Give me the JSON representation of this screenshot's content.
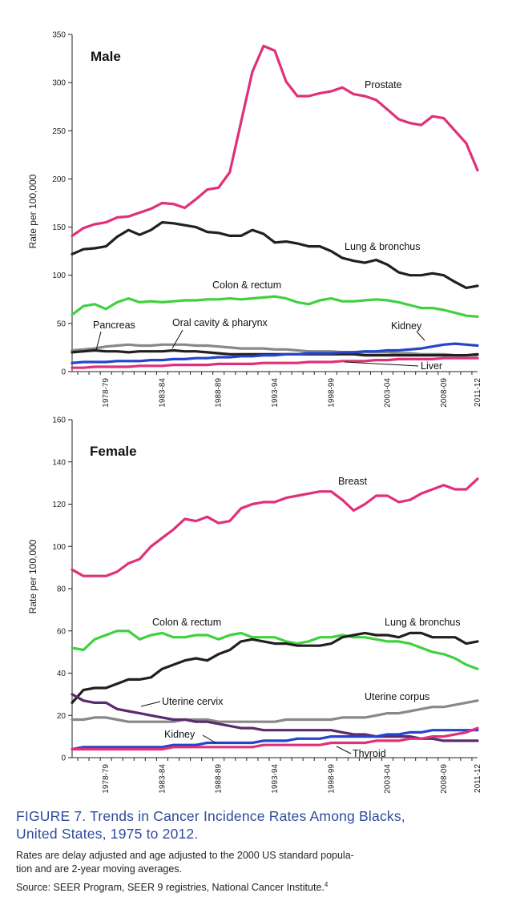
{
  "figure": {
    "title_line1": "FIGURE 7. Trends in Cancer Incidence Rates Among Blacks,",
    "title_line2": "United States, 1975 to 2012.",
    "note_line1": "Rates are delay adjusted and age adjusted to the 2000 US standard popula-",
    "note_line2": "tion and are 2-year moving averages.",
    "source": "Source: SEER Program, SEER 9 registries, National Cancer Institute.",
    "source_ref": "4"
  },
  "chart_data": [
    {
      "type": "line",
      "title": "Male",
      "ylabel": "Rate per 100,000",
      "ylim": [
        0,
        350
      ],
      "yticks": [
        0,
        50,
        100,
        150,
        200,
        250,
        300,
        350
      ],
      "xlim": [
        1975.5,
        2011.5
      ],
      "xtick_labels": [
        "1978-79",
        "1983-84",
        "1988-89",
        "1993-94",
        "1998-99",
        "2003-04",
        "2008-09",
        "2011-12"
      ],
      "x": [
        1975.5,
        1976.5,
        1977.5,
        1978.5,
        1979.5,
        1980.5,
        1981.5,
        1982.5,
        1983.5,
        1984.5,
        1985.5,
        1986.5,
        1987.5,
        1988.5,
        1989.5,
        1990.5,
        1991.5,
        1992.5,
        1993.5,
        1994.5,
        1995.5,
        1996.5,
        1997.5,
        1998.5,
        1999.5,
        2000.5,
        2001.5,
        2002.5,
        2003.5,
        2004.5,
        2005.5,
        2006.5,
        2007.5,
        2008.5,
        2009.5,
        2010.5,
        2011.5
      ],
      "series": [
        {
          "name": "Prostate",
          "color": "#e0307a",
          "values": [
            141,
            149,
            153,
            155,
            160,
            161,
            165,
            169,
            175,
            174,
            170,
            179,
            189,
            191,
            207,
            259,
            311,
            338,
            333,
            301,
            286,
            286,
            289,
            291,
            295,
            288,
            286,
            282,
            272,
            262,
            258,
            256,
            265,
            263,
            250,
            237,
            209
          ]
        },
        {
          "name": "Lung & bronchus",
          "color": "#231f20",
          "values": [
            122,
            127,
            128,
            130,
            140,
            147,
            142,
            147,
            155,
            154,
            152,
            150,
            145,
            144,
            141,
            141,
            147,
            143,
            134,
            135,
            133,
            130,
            130,
            125,
            118,
            115,
            113,
            116,
            111,
            103,
            100,
            100,
            102,
            100,
            93,
            87,
            89
          ]
        },
        {
          "name": "Colon & rectum",
          "color": "#3fd13f",
          "values": [
            59,
            68,
            70,
            65,
            72,
            76,
            72,
            73,
            72,
            73,
            74,
            74,
            75,
            75,
            76,
            75,
            76,
            77,
            78,
            76,
            72,
            70,
            74,
            76,
            73,
            73,
            74,
            75,
            74,
            72,
            69,
            66,
            66,
            64,
            61,
            58,
            57
          ]
        },
        {
          "name": "Pancreas",
          "color": "#888888",
          "values": [
            22,
            23,
            24,
            26,
            27,
            28,
            27,
            27,
            28,
            28,
            28,
            27,
            27,
            26,
            25,
            24,
            24,
            24,
            23,
            23,
            22,
            21,
            21,
            21,
            20,
            20,
            20,
            20,
            20,
            19,
            19,
            18,
            18,
            18,
            17,
            17,
            17
          ]
        },
        {
          "name": "Oral cavity & pharynx",
          "color": "#231f20",
          "values": [
            20,
            21,
            22,
            21,
            21,
            20,
            21,
            21,
            21,
            22,
            21,
            21,
            20,
            19,
            18,
            18,
            18,
            18,
            18,
            18,
            18,
            18,
            18,
            18,
            18,
            18,
            17,
            17,
            17,
            17,
            17,
            17,
            17,
            17,
            17,
            17,
            18
          ]
        },
        {
          "name": "Kidney",
          "color": "#2444cc",
          "values": [
            9,
            10,
            10,
            10,
            11,
            11,
            11,
            12,
            12,
            13,
            13,
            14,
            14,
            15,
            15,
            16,
            16,
            17,
            17,
            18,
            18,
            19,
            19,
            19,
            20,
            20,
            21,
            21,
            22,
            22,
            23,
            24,
            26,
            28,
            29,
            28,
            27
          ]
        },
        {
          "name": "Liver",
          "color": "#e0307a",
          "values": [
            4,
            4,
            5,
            5,
            5,
            5,
            6,
            6,
            6,
            7,
            7,
            7,
            7,
            8,
            8,
            8,
            8,
            9,
            9,
            9,
            9,
            10,
            10,
            10,
            11,
            11,
            11,
            12,
            12,
            13,
            13,
            13,
            13,
            14,
            14,
            14,
            14
          ]
        }
      ]
    },
    {
      "type": "line",
      "title": "Female",
      "ylabel": "Rate per 100,000",
      "ylim": [
        0,
        160
      ],
      "yticks": [
        0,
        20,
        40,
        60,
        80,
        100,
        120,
        140,
        160
      ],
      "xlim": [
        1975.5,
        2011.5
      ],
      "xtick_labels": [
        "1978-79",
        "1983-84",
        "1988-89",
        "1993-94",
        "1998-99",
        "2003-04",
        "2008-09",
        "2011-12"
      ],
      "x": [
        1975.5,
        1976.5,
        1977.5,
        1978.5,
        1979.5,
        1980.5,
        1981.5,
        1982.5,
        1983.5,
        1984.5,
        1985.5,
        1986.5,
        1987.5,
        1988.5,
        1989.5,
        1990.5,
        1991.5,
        1992.5,
        1993.5,
        1994.5,
        1995.5,
        1996.5,
        1997.5,
        1998.5,
        1999.5,
        2000.5,
        2001.5,
        2002.5,
        2003.5,
        2004.5,
        2005.5,
        2006.5,
        2007.5,
        2008.5,
        2009.5,
        2010.5,
        2011.5
      ],
      "series": [
        {
          "name": "Breast",
          "color": "#e0307a",
          "values": [
            89,
            86,
            86,
            86,
            88,
            92,
            94,
            100,
            104,
            108,
            113,
            112,
            114,
            111,
            112,
            118,
            120,
            121,
            121,
            123,
            124,
            125,
            126,
            126,
            122,
            117,
            120,
            124,
            124,
            121,
            122,
            125,
            127,
            129,
            127,
            127,
            132
          ]
        },
        {
          "name": "Colon & rectum",
          "color": "#3fd13f",
          "values": [
            52,
            51,
            56,
            58,
            60,
            60,
            56,
            58,
            59,
            57,
            57,
            58,
            58,
            56,
            58,
            59,
            57,
            57,
            57,
            55,
            54,
            55,
            57,
            57,
            58,
            57,
            57,
            56,
            55,
            55,
            54,
            52,
            50,
            49,
            47,
            44,
            42
          ]
        },
        {
          "name": "Lung & bronchus",
          "color": "#231f20",
          "values": [
            26,
            32,
            33,
            33,
            35,
            37,
            37,
            38,
            42,
            44,
            46,
            47,
            46,
            49,
            51,
            55,
            56,
            55,
            54,
            54,
            53,
            53,
            53,
            54,
            57,
            58,
            59,
            58,
            58,
            57,
            59,
            59,
            57,
            57,
            57,
            54,
            55
          ]
        },
        {
          "name": "Uterine corpus",
          "color": "#888888",
          "values": [
            18,
            18,
            19,
            19,
            18,
            17,
            17,
            17,
            17,
            17,
            18,
            18,
            18,
            17,
            17,
            17,
            17,
            17,
            17,
            18,
            18,
            18,
            18,
            18,
            19,
            19,
            19,
            20,
            21,
            21,
            22,
            23,
            24,
            24,
            25,
            26,
            27
          ]
        },
        {
          "name": "Uterine cervix",
          "color": "#5a2a6e",
          "values": [
            30,
            27,
            26,
            26,
            23,
            22,
            21,
            20,
            19,
            18,
            18,
            17,
            17,
            16,
            15,
            14,
            14,
            13,
            13,
            13,
            13,
            13,
            13,
            13,
            12,
            11,
            11,
            10,
            10,
            10,
            10,
            9,
            9,
            8,
            8,
            8,
            8
          ]
        },
        {
          "name": "Kidney",
          "color": "#2444cc",
          "values": [
            4,
            5,
            5,
            5,
            5,
            5,
            5,
            5,
            5,
            6,
            6,
            6,
            7,
            7,
            7,
            7,
            7,
            8,
            8,
            8,
            9,
            9,
            9,
            10,
            10,
            10,
            10,
            10,
            11,
            11,
            12,
            12,
            13,
            13,
            13,
            13,
            13
          ]
        },
        {
          "name": "Thyroid",
          "color": "#e0307a",
          "values": [
            4,
            4,
            4,
            4,
            4,
            4,
            4,
            4,
            4,
            5,
            5,
            5,
            5,
            5,
            5,
            5,
            5,
            6,
            6,
            6,
            6,
            6,
            6,
            7,
            7,
            7,
            7,
            8,
            8,
            8,
            9,
            9,
            10,
            10,
            11,
            12,
            14
          ]
        }
      ]
    }
  ]
}
